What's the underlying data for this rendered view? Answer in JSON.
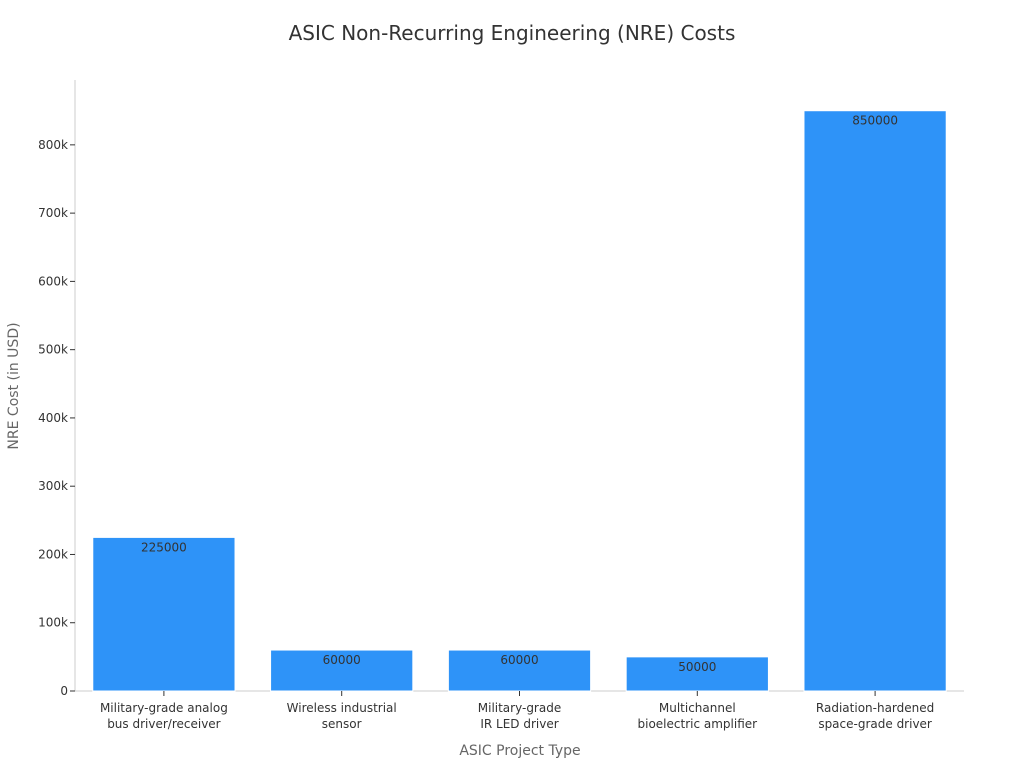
{
  "chart_data": {
    "type": "bar",
    "title": "ASIC Non-Recurring Engineering (NRE) Costs",
    "xlabel": "ASIC Project Type",
    "ylabel": "NRE Cost (in USD)",
    "categories": [
      [
        "Military-grade analog",
        "bus driver/receiver"
      ],
      [
        "Wireless industrial",
        "sensor"
      ],
      [
        "Military-grade",
        "IR LED driver"
      ],
      [
        "Multichannel",
        "bioelectric amplifier"
      ],
      [
        "Radiation-hardened",
        "space-grade driver"
      ]
    ],
    "values": [
      225000,
      60000,
      60000,
      50000,
      850000
    ],
    "data_labels": [
      "225000",
      "60000",
      "60000",
      "50000",
      "850000"
    ],
    "ylim": [
      0,
      895000
    ],
    "yticks": [
      0,
      100000,
      200000,
      300000,
      400000,
      500000,
      600000,
      700000,
      800000
    ],
    "ytick_labels": [
      "0",
      "100k",
      "200k",
      "300k",
      "400k",
      "500k",
      "600k",
      "700k",
      "800k"
    ],
    "grid": false,
    "bar_color": "#2e93f8",
    "legend": "none"
  }
}
